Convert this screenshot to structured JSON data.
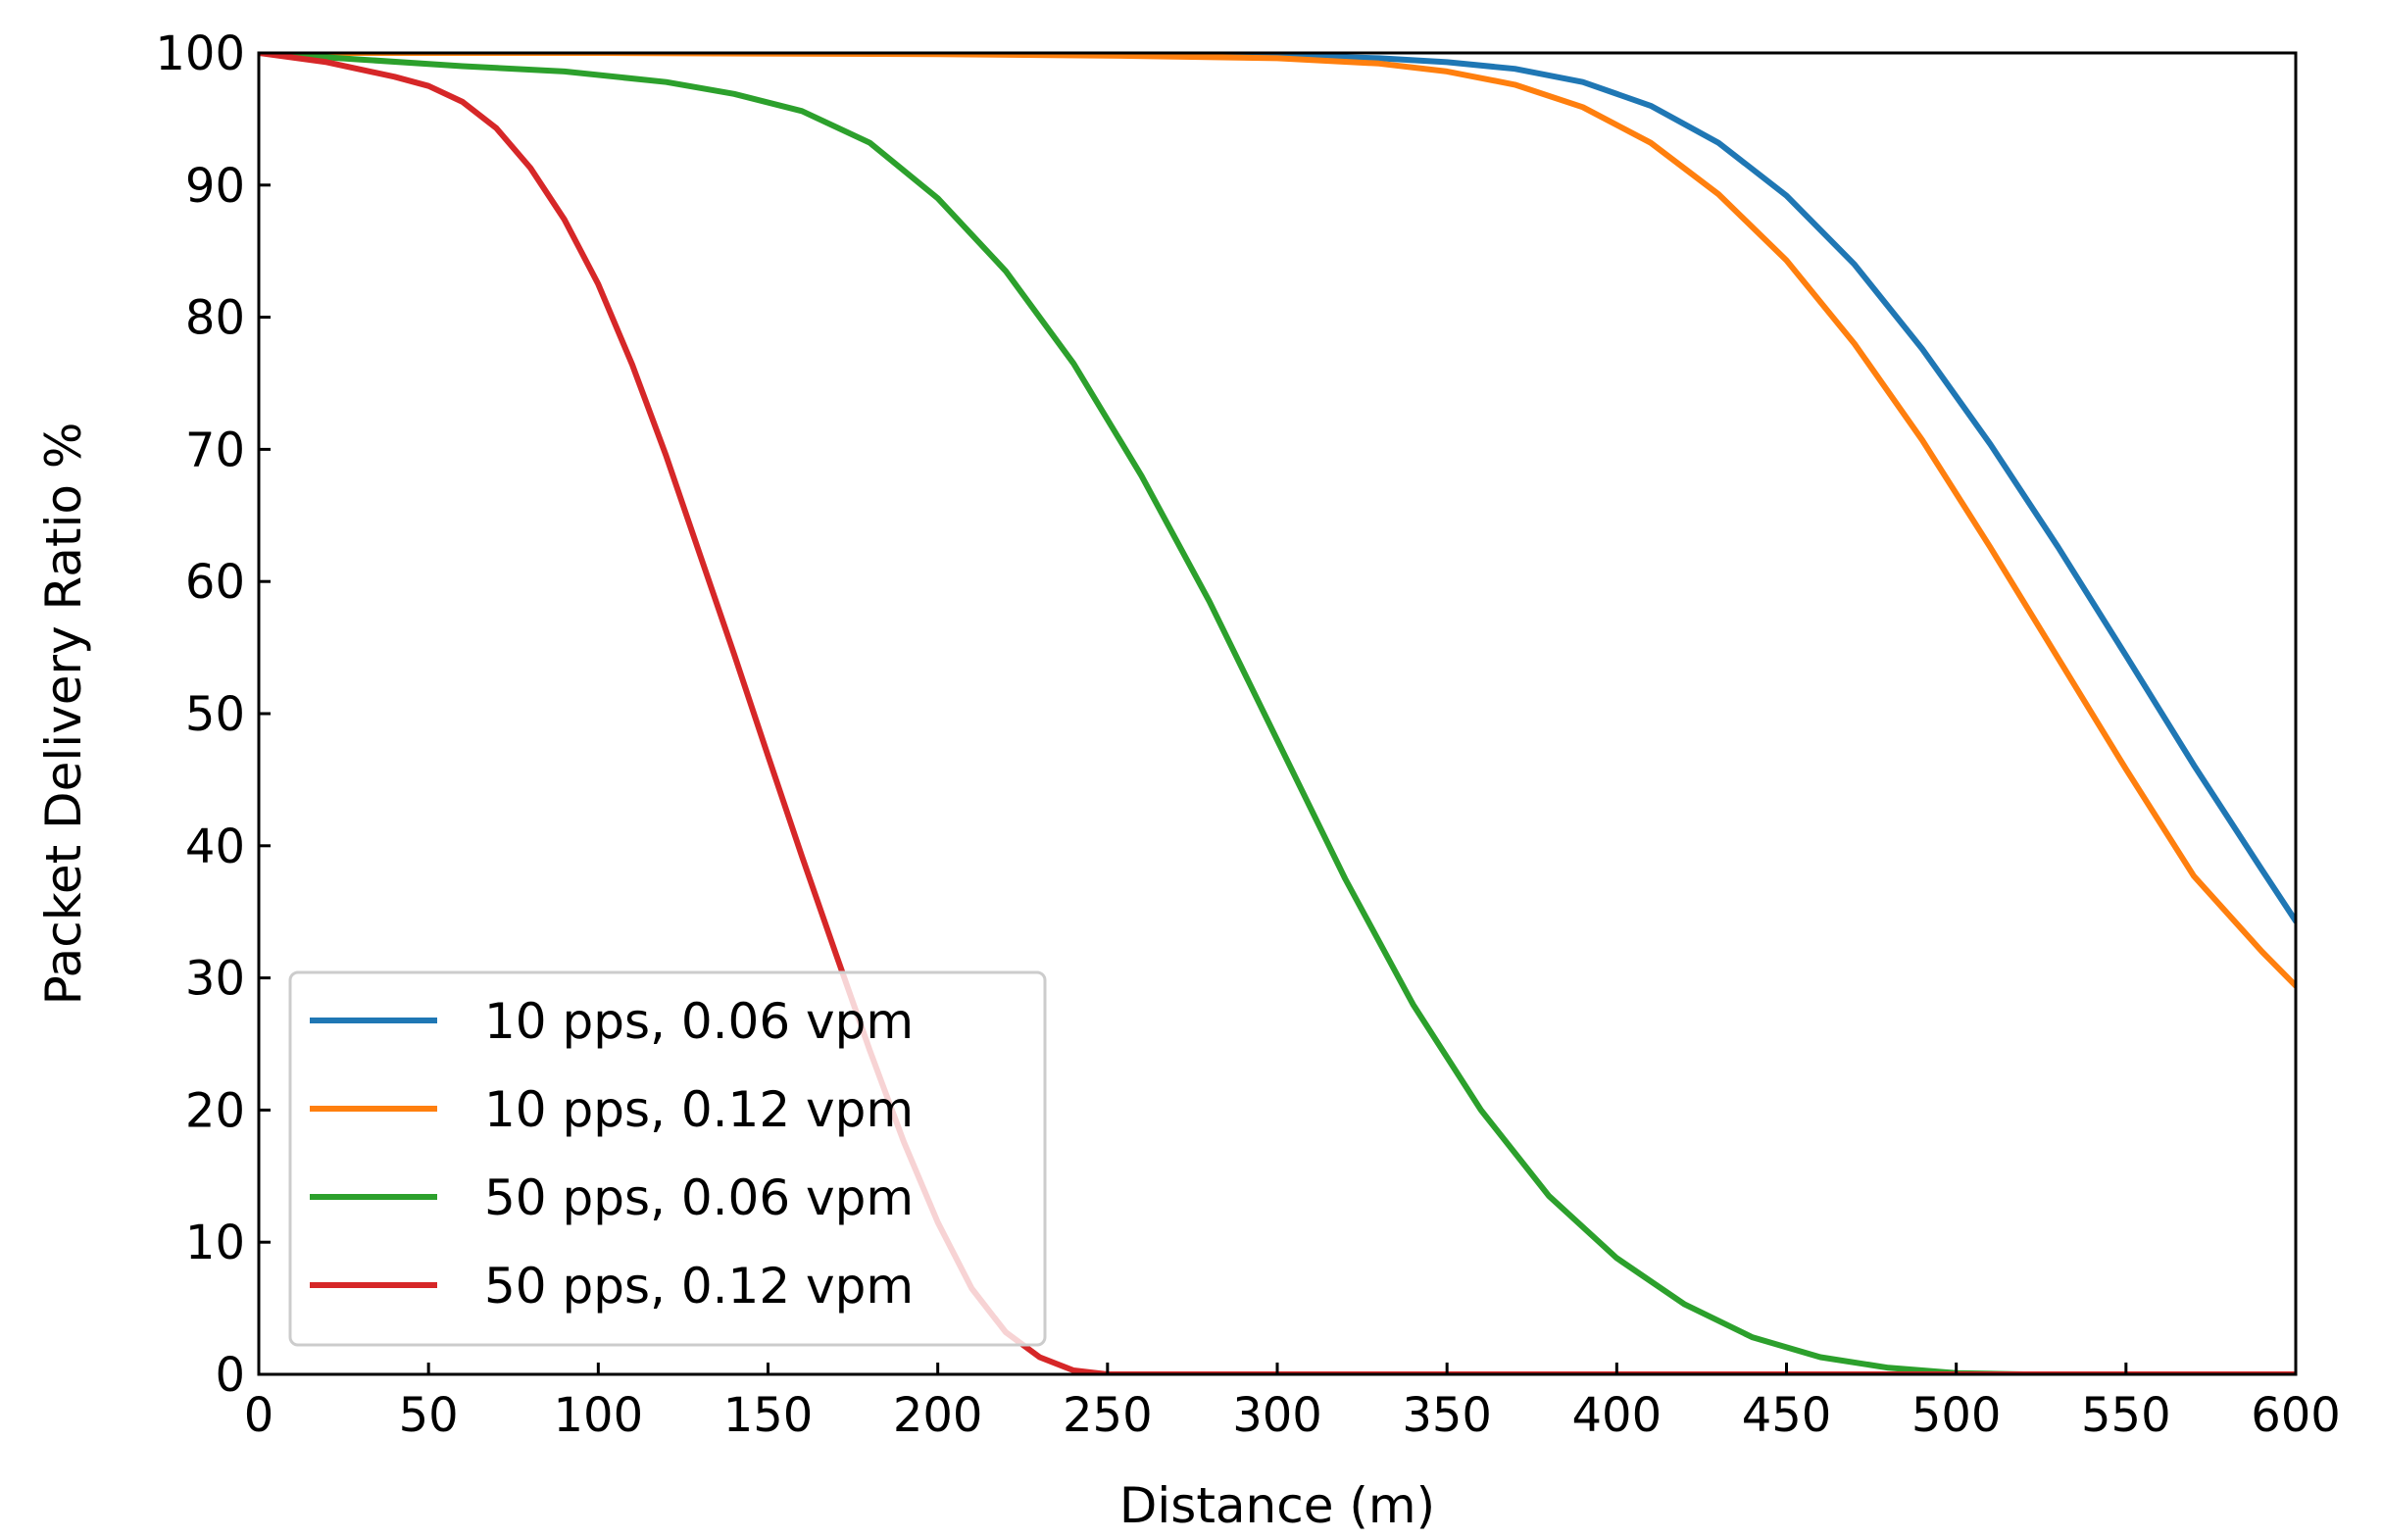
{
  "chart_data": {
    "type": "line",
    "title": "",
    "xlabel": "Distance (m)",
    "ylabel": "Packet Delivery Ratio %",
    "xlim": [
      0,
      600
    ],
    "ylim": [
      0,
      100
    ],
    "xticks": [
      0,
      50,
      100,
      150,
      200,
      250,
      300,
      350,
      400,
      450,
      500,
      550,
      600
    ],
    "yticks": [
      0,
      10,
      20,
      30,
      40,
      50,
      60,
      70,
      80,
      90,
      100
    ],
    "grid": false,
    "legend_position": "lower-left",
    "series": [
      {
        "name": "10 pps, 0.06 vpm",
        "color": "#1f77b4",
        "x": [
          0,
          100,
          200,
          250,
          300,
          330,
          350,
          370,
          390,
          410,
          430,
          450,
          470,
          490,
          510,
          530,
          550,
          570,
          590,
          600
        ],
        "values": [
          100,
          100,
          100,
          99.9,
          99.8,
          99.6,
          99.3,
          98.8,
          97.8,
          96.0,
          93.2,
          89.2,
          84.0,
          77.6,
          70.4,
          62.6,
          54.4,
          46.1,
          38.2,
          34.3
        ]
      },
      {
        "name": "10 pps, 0.12 vpm",
        "color": "#ff7f0e",
        "x": [
          0,
          100,
          200,
          250,
          300,
          330,
          350,
          370,
          390,
          410,
          430,
          450,
          470,
          490,
          510,
          530,
          550,
          570,
          590,
          600
        ],
        "values": [
          100,
          100,
          99.9,
          99.8,
          99.6,
          99.2,
          98.6,
          97.6,
          95.9,
          93.2,
          89.3,
          84.3,
          78.0,
          70.7,
          62.6,
          54.2,
          45.8,
          37.7,
          32.0,
          29.4
        ]
      },
      {
        "name": "50 pps, 0.06 vpm",
        "color": "#2ca02c",
        "x": [
          0,
          30,
          60,
          90,
          120,
          140,
          160,
          180,
          200,
          220,
          240,
          260,
          280,
          300,
          320,
          340,
          360,
          380,
          400,
          420,
          440,
          460,
          480,
          500,
          520,
          600
        ],
        "values": [
          100,
          99.5,
          99.0,
          98.6,
          97.8,
          96.9,
          95.6,
          93.2,
          89.0,
          83.5,
          76.5,
          68.0,
          58.5,
          48.0,
          37.5,
          28.0,
          20.0,
          13.5,
          8.8,
          5.3,
          2.8,
          1.3,
          0.5,
          0.1,
          0,
          0
        ]
      },
      {
        "name": "50 pps, 0.12 vpm",
        "color": "#d62728",
        "x": [
          0,
          20,
          40,
          50,
          60,
          70,
          80,
          90,
          100,
          110,
          120,
          130,
          140,
          150,
          160,
          170,
          180,
          190,
          200,
          210,
          220,
          230,
          240,
          250,
          600
        ],
        "values": [
          100,
          99.3,
          98.2,
          97.5,
          96.3,
          94.3,
          91.3,
          87.4,
          82.5,
          76.4,
          69.5,
          62.0,
          54.5,
          46.8,
          39.2,
          31.8,
          24.5,
          17.6,
          11.5,
          6.5,
          3.2,
          1.3,
          0.3,
          0,
          0
        ]
      }
    ]
  }
}
